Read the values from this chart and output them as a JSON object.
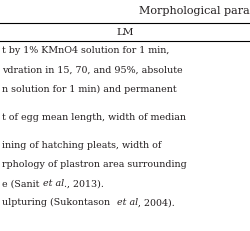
{
  "title": "Morphological para",
  "col_header": "LM",
  "row1_lines": [
    "t by 1% KMnO4 solution for 1 min,",
    "vdration in 15, 70, and 95%, absolute",
    "n solution for 1 min) and permanent"
  ],
  "row2_lines": [
    "t of egg mean length, width of median"
  ],
  "row3_data": [
    [
      "ining of hatching pleats, width of",
      null,
      null
    ],
    [
      "rphology of plastron area surrounding",
      null,
      null
    ],
    [
      "e (Sanit ",
      "et al",
      "., 2013)."
    ],
    [
      "ulpturing (Sukontason  ",
      "et al",
      ", 2004)."
    ]
  ],
  "bg_color": "#ffffff",
  "text_color": "#231f20",
  "font_size": 6.8,
  "header_font_size": 7.5,
  "title_font_size": 8.0
}
